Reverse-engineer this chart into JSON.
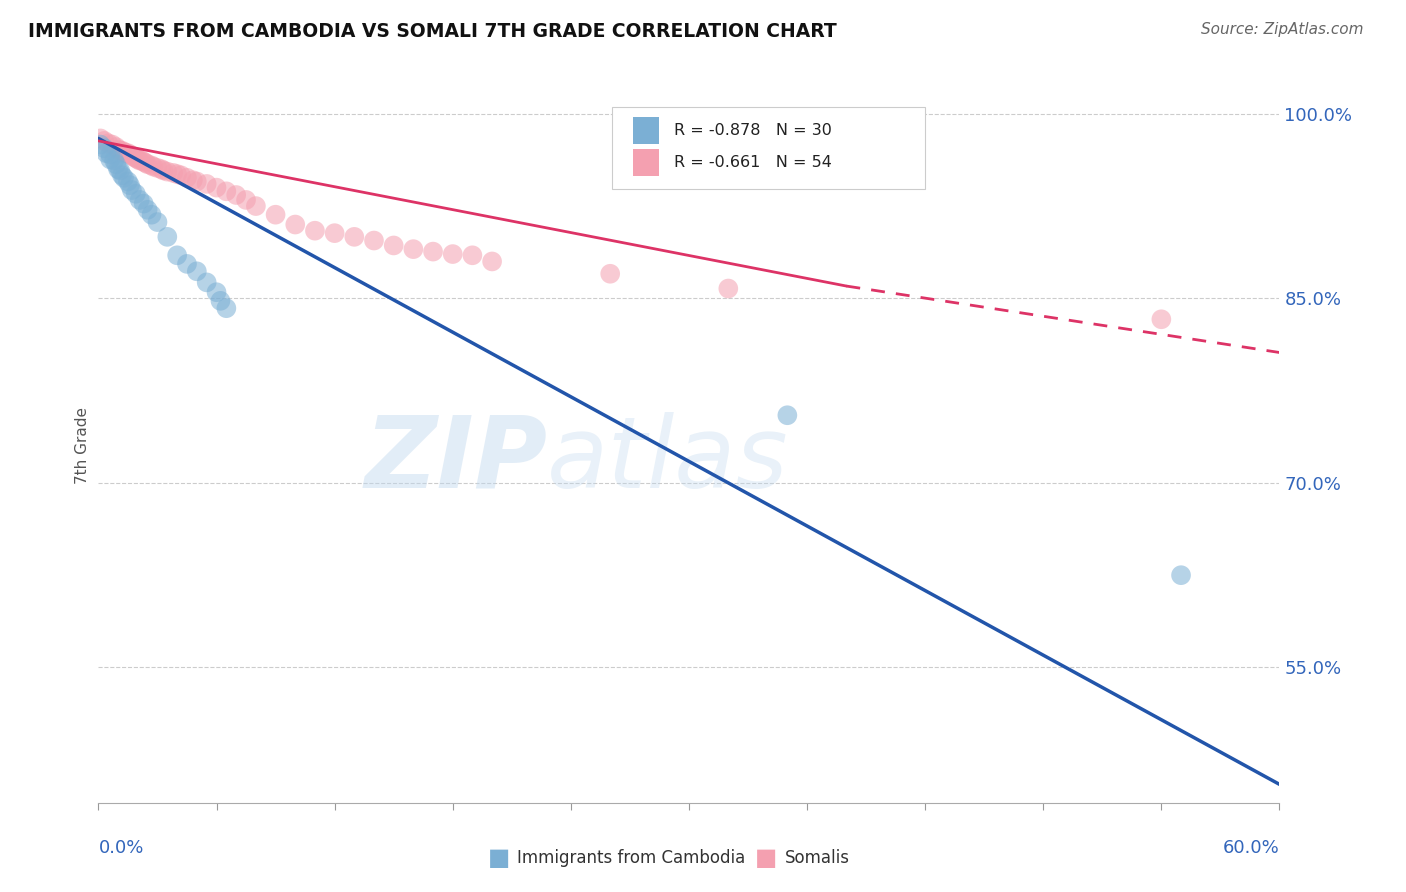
{
  "title": "IMMIGRANTS FROM CAMBODIA VS SOMALI 7TH GRADE CORRELATION CHART",
  "source": "Source: ZipAtlas.com",
  "ylabel": "7th Grade",
  "right_yticks": [
    55.0,
    70.0,
    85.0,
    100.0
  ],
  "legend_blue_r": "R = -0.878",
  "legend_blue_n": "N = 30",
  "legend_pink_r": "R = -0.661",
  "legend_pink_n": "N = 54",
  "watermark": "ZIPatlas",
  "blue_color": "#7BAFD4",
  "pink_color": "#F4A0B0",
  "blue_line_color": "#2255AA",
  "pink_line_color": "#DD3366",
  "blue_scatter": [
    [
      0.001,
      0.975
    ],
    [
      0.003,
      0.972
    ],
    [
      0.004,
      0.968
    ],
    [
      0.006,
      0.967
    ],
    [
      0.006,
      0.963
    ],
    [
      0.008,
      0.962
    ],
    [
      0.009,
      0.959
    ],
    [
      0.01,
      0.955
    ],
    [
      0.011,
      0.954
    ],
    [
      0.012,
      0.95
    ],
    [
      0.013,
      0.948
    ],
    [
      0.015,
      0.945
    ],
    [
      0.016,
      0.942
    ],
    [
      0.017,
      0.938
    ],
    [
      0.019,
      0.935
    ],
    [
      0.021,
      0.93
    ],
    [
      0.023,
      0.927
    ],
    [
      0.025,
      0.922
    ],
    [
      0.027,
      0.918
    ],
    [
      0.03,
      0.912
    ],
    [
      0.035,
      0.9
    ],
    [
      0.04,
      0.885
    ],
    [
      0.045,
      0.878
    ],
    [
      0.05,
      0.872
    ],
    [
      0.055,
      0.863
    ],
    [
      0.06,
      0.855
    ],
    [
      0.062,
      0.848
    ],
    [
      0.065,
      0.842
    ],
    [
      0.35,
      0.755
    ],
    [
      0.55,
      0.625
    ]
  ],
  "pink_scatter": [
    [
      0.001,
      0.98
    ],
    [
      0.003,
      0.978
    ],
    [
      0.005,
      0.976
    ],
    [
      0.007,
      0.975
    ],
    [
      0.009,
      0.973
    ],
    [
      0.01,
      0.971
    ],
    [
      0.011,
      0.97
    ],
    [
      0.012,
      0.97
    ],
    [
      0.013,
      0.969
    ],
    [
      0.014,
      0.968
    ],
    [
      0.015,
      0.968
    ],
    [
      0.016,
      0.967
    ],
    [
      0.017,
      0.966
    ],
    [
      0.018,
      0.965
    ],
    [
      0.019,
      0.964
    ],
    [
      0.02,
      0.963
    ],
    [
      0.021,
      0.962
    ],
    [
      0.022,
      0.962
    ],
    [
      0.023,
      0.961
    ],
    [
      0.024,
      0.96
    ],
    [
      0.025,
      0.959
    ],
    [
      0.027,
      0.958
    ],
    [
      0.028,
      0.957
    ],
    [
      0.03,
      0.956
    ],
    [
      0.032,
      0.955
    ],
    [
      0.033,
      0.954
    ],
    [
      0.035,
      0.953
    ],
    [
      0.038,
      0.952
    ],
    [
      0.04,
      0.951
    ],
    [
      0.042,
      0.95
    ],
    [
      0.045,
      0.948
    ],
    [
      0.048,
      0.946
    ],
    [
      0.05,
      0.945
    ],
    [
      0.055,
      0.943
    ],
    [
      0.06,
      0.94
    ],
    [
      0.065,
      0.937
    ],
    [
      0.07,
      0.934
    ],
    [
      0.075,
      0.93
    ],
    [
      0.08,
      0.925
    ],
    [
      0.09,
      0.918
    ],
    [
      0.1,
      0.91
    ],
    [
      0.11,
      0.905
    ],
    [
      0.12,
      0.903
    ],
    [
      0.13,
      0.9
    ],
    [
      0.14,
      0.897
    ],
    [
      0.15,
      0.893
    ],
    [
      0.16,
      0.89
    ],
    [
      0.17,
      0.888
    ],
    [
      0.18,
      0.886
    ],
    [
      0.19,
      0.885
    ],
    [
      0.2,
      0.88
    ],
    [
      0.26,
      0.87
    ],
    [
      0.32,
      0.858
    ],
    [
      0.54,
      0.833
    ]
  ],
  "blue_line": [
    [
      0.0,
      0.98
    ],
    [
      0.6,
      0.455
    ]
  ],
  "pink_line_solid": [
    [
      0.0,
      0.978
    ],
    [
      0.38,
      0.86
    ]
  ],
  "pink_line_dashed": [
    [
      0.38,
      0.86
    ],
    [
      0.6,
      0.806
    ]
  ],
  "xmin": 0.0,
  "xmax": 0.6,
  "ymin": 0.44,
  "ymax": 1.02,
  "background": "#FFFFFF",
  "grid_color": "#CCCCCC"
}
